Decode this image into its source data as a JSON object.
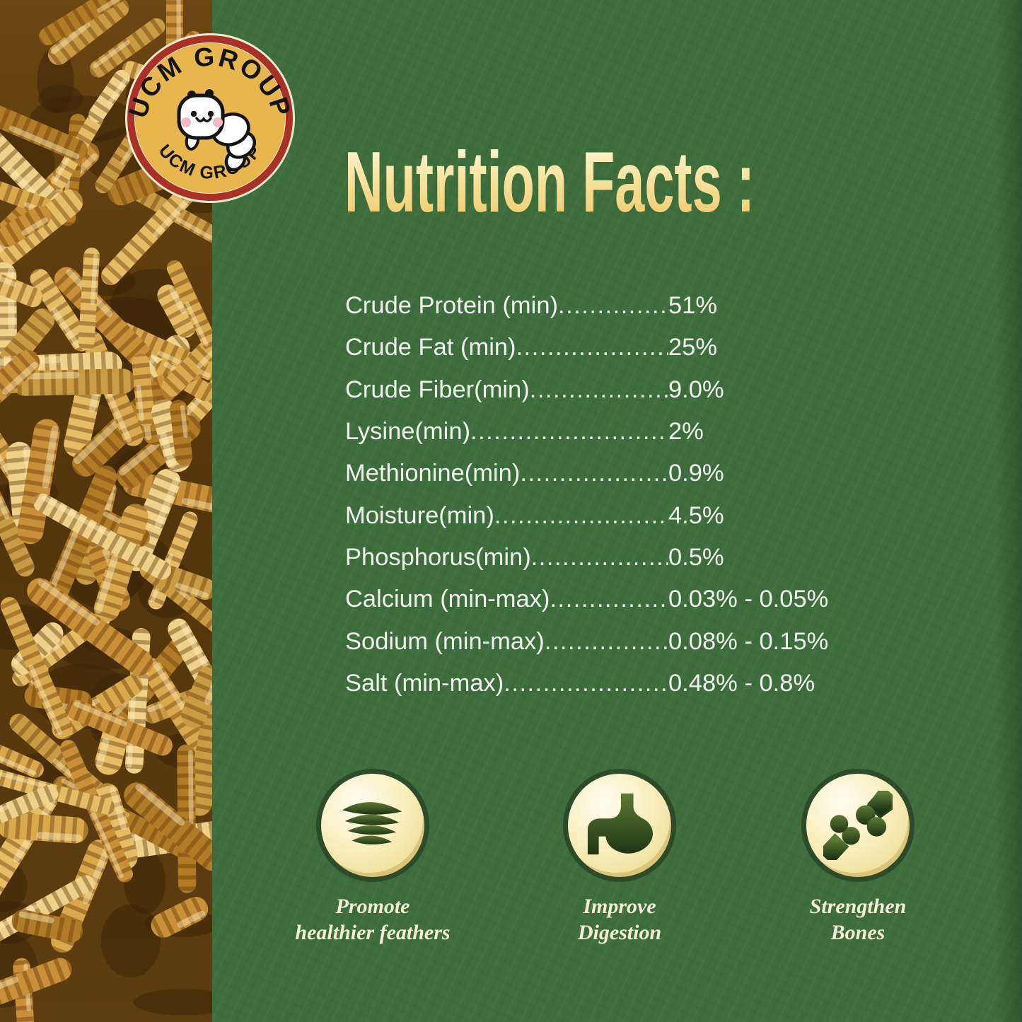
{
  "branding": {
    "logo_top_text": "UCM GROUP",
    "logo_bottom_text": "UCM GROUP"
  },
  "header": {
    "title": "Nutrition Facts :"
  },
  "nutrition": {
    "leader": "..........................................................................................",
    "rows": [
      {
        "label": "Crude Protein (min)",
        "value": "51%"
      },
      {
        "label": "Crude Fat (min)",
        "value": "25%"
      },
      {
        "label": "Crude Fiber(min)",
        "value": "9.0%"
      },
      {
        "label": "Lysine(min)",
        "value": "2%"
      },
      {
        "label": "Methionine(min)",
        "value": "0.9%"
      },
      {
        "label": "Moisture(min)",
        "value": "4.5%"
      },
      {
        "label": "Phosphorus(min)",
        "value": "0.5%"
      },
      {
        "label": "Calcium (min-max)",
        "value": "0.03% - 0.05%"
      },
      {
        "label": "Sodium (min-max)",
        "value": "0.08% - 0.15%"
      },
      {
        "label": "Salt (min-max)",
        "value": "0.48% - 0.8%"
      }
    ]
  },
  "benefits": [
    {
      "icon": "feather-wing-icon",
      "line1": "Promote",
      "line2": "healthier feathers"
    },
    {
      "icon": "stomach-icon",
      "line1": "Improve",
      "line2": "Digestion"
    },
    {
      "icon": "bone-joint-icon",
      "line1": "Strengthen",
      "line2": "Bones"
    }
  ],
  "colors": {
    "background_green": "#3f6e3d",
    "title_gradient_top": "#fdf6d4",
    "title_gradient_bottom": "#efca6e",
    "list_text": "#eff3ed",
    "benefit_label": "#f4eed9",
    "badge_ring": "#2d4b28",
    "badge_fill": "#f8eebc",
    "glyph_green_dark": "#1f3414",
    "logo_gold": "#e7b64c",
    "logo_ring_red": "#a93128",
    "logo_outer_cream": "#f3ead0",
    "mealworm_gold": "#d9a94e"
  }
}
